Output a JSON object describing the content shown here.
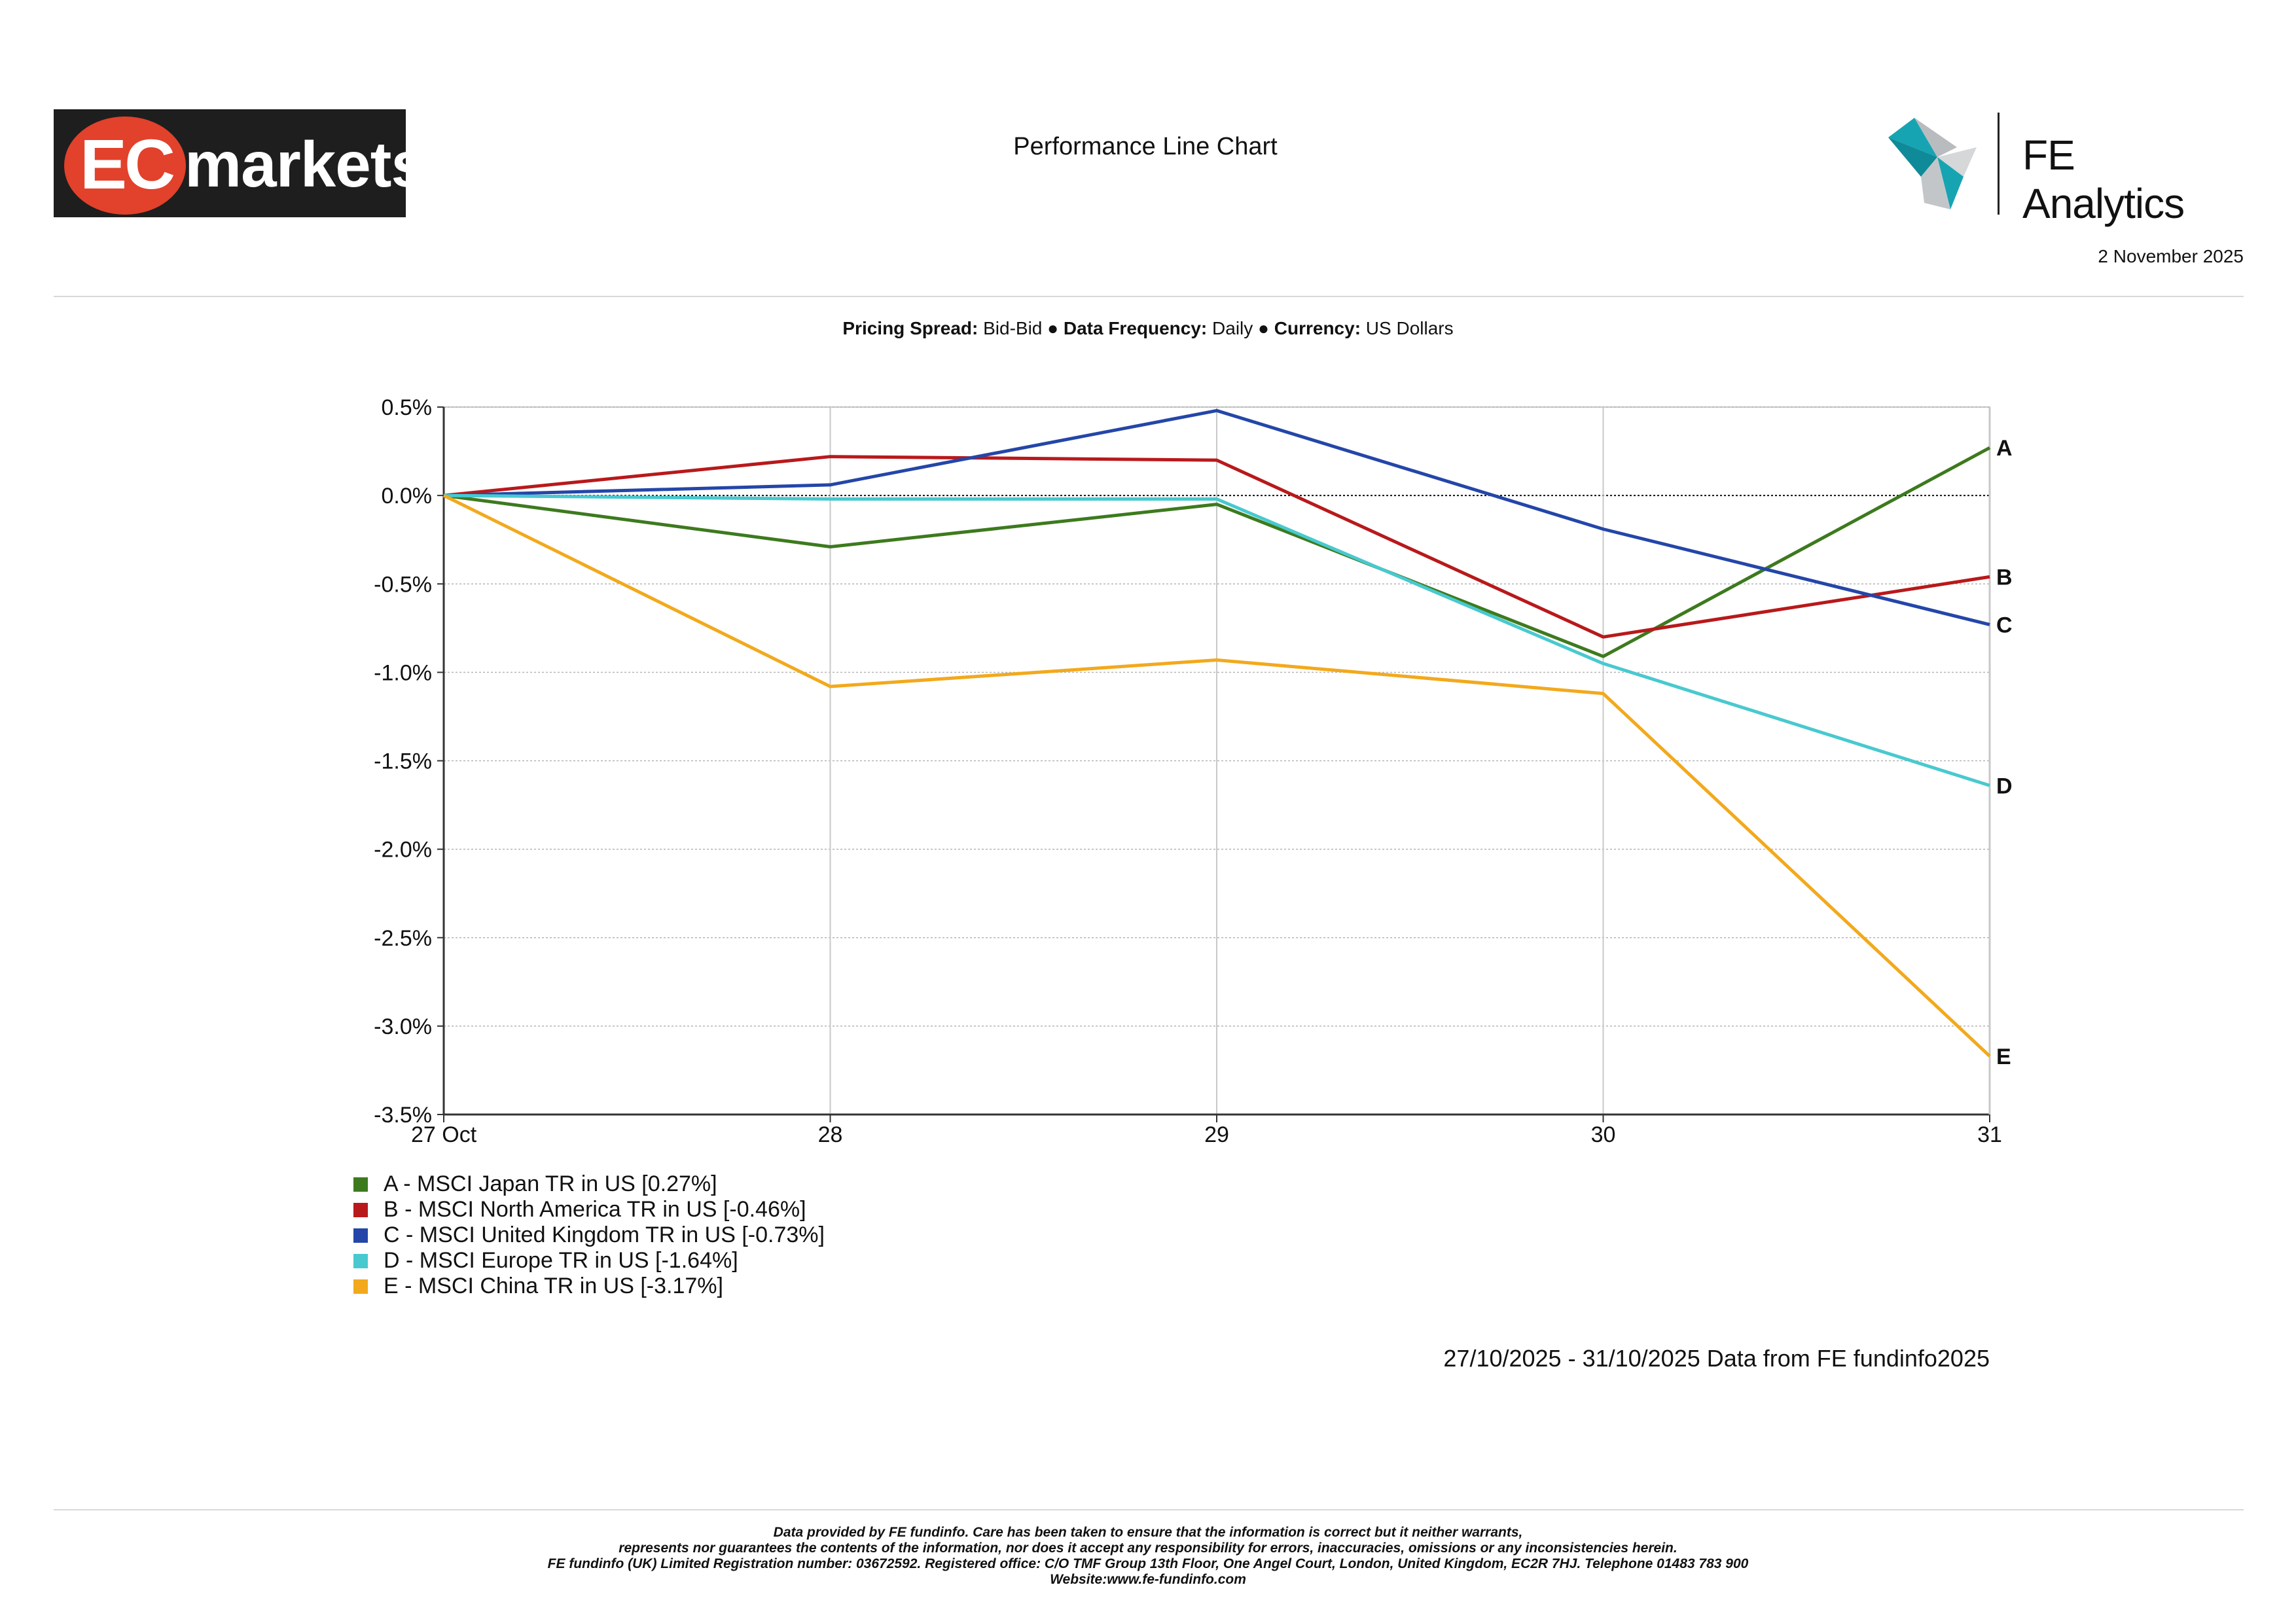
{
  "header": {
    "logo_text": "EC markets",
    "logo_ec": "EC",
    "logo_markets": "markets",
    "title": "Performance Line Chart",
    "brand": "FE Analytics",
    "date": "2 November 2025"
  },
  "meta": {
    "pricing_spread_label": "Pricing Spread:",
    "pricing_spread": "Bid-Bid",
    "frequency_label": "Data Frequency:",
    "frequency": "Daily",
    "currency_label": "Currency:",
    "currency": "US Dollars",
    "separator": "●"
  },
  "chart_data": {
    "type": "line",
    "title": "Performance Line Chart",
    "x": [
      "27 Oct",
      "28",
      "29",
      "30",
      "31"
    ],
    "ylim": [
      -3.5,
      0.5
    ],
    "yticks": [
      0.5,
      0.0,
      -0.5,
      -1.0,
      -1.5,
      -2.0,
      -2.5,
      -3.0,
      -3.5
    ],
    "ytick_labels": [
      "0.5%",
      "0.0%",
      "-0.5%",
      "-1.0%",
      "-1.5%",
      "-2.0%",
      "-2.5%",
      "-3.0%",
      "-3.5%"
    ],
    "grid": true,
    "series": [
      {
        "key": "A",
        "name": "A - MSCI Japan TR in US [0.27%]",
        "color": "#3d7a1e",
        "values": [
          0,
          -0.29,
          -0.05,
          -0.91,
          0.27
        ]
      },
      {
        "key": "B",
        "name": "B - MSCI North America TR in US [-0.46%]",
        "color": "#b8191b",
        "values": [
          0,
          0.22,
          0.2,
          -0.8,
          -0.46
        ]
      },
      {
        "key": "C",
        "name": "C - MSCI United Kingdom TR in US [-0.73%]",
        "color": "#2446a8",
        "values": [
          0,
          0.06,
          0.48,
          -0.19,
          -0.73
        ]
      },
      {
        "key": "D",
        "name": "D - MSCI Europe TR in US [-1.64%]",
        "color": "#48c9cf",
        "values": [
          0,
          -0.02,
          -0.02,
          -0.95,
          -1.64
        ]
      },
      {
        "key": "E",
        "name": "E - MSCI China TR in US [-3.17%]",
        "color": "#f2a91c",
        "values": [
          0,
          -1.08,
          -0.93,
          -1.12,
          -3.17
        ]
      }
    ]
  },
  "source_note": "27/10/2025 - 31/10/2025 Data from FE fundinfo2025",
  "disclaimer": {
    "line1": "Data provided by FE fundinfo. Care has been taken to ensure that the information is correct but it neither warrants,",
    "line2": "represents nor guarantees the contents of the information, nor does it accept any responsibility for errors, inaccuracies, omissions or any inconsistencies herein.",
    "line3": "FE fundinfo (UK) Limited Registration number: 03672592. Registered office: C/O TMF Group 13th Floor, One Angel Court, London, United Kingdom, EC2R 7HJ. Telephone 01483 783 900",
    "line4": "Website:www.fe-fundinfo.com"
  },
  "colors": {
    "ec_red": "#e2412b",
    "fe_teal": "#1aa3b0",
    "fe_grey": "#b9bcbf"
  }
}
